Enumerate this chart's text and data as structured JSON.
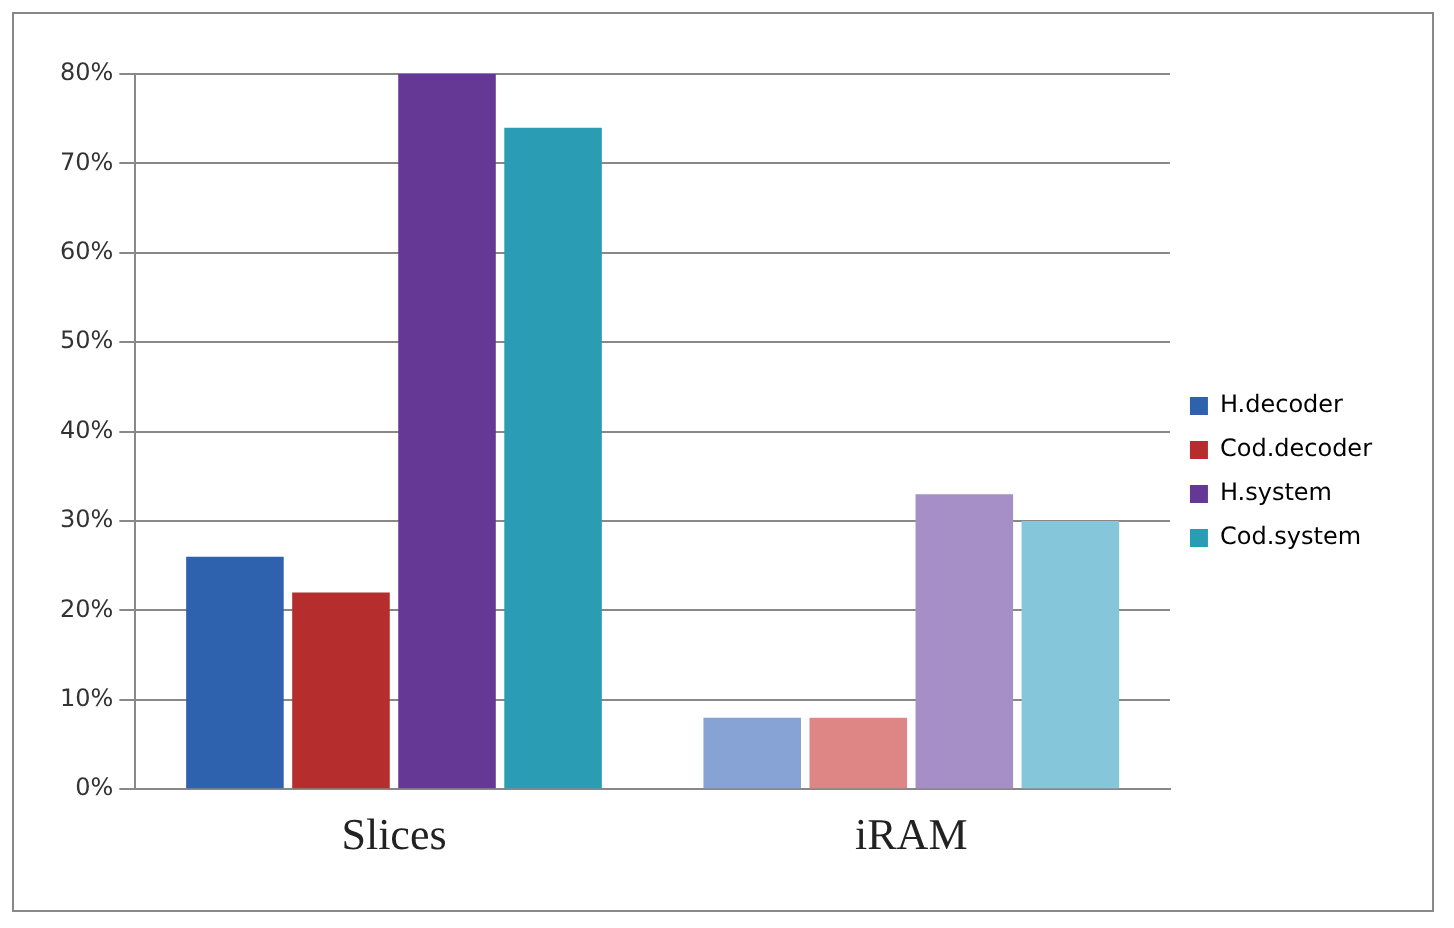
{
  "chart_data": {
    "type": "bar",
    "categories": [
      "Slices",
      "iRAM"
    ],
    "series": [
      {
        "name": "H.decoder",
        "color": "#2e62ae",
        "colors": [
          "#2e62ae",
          "#87a3d6"
        ],
        "values": [
          26,
          8
        ]
      },
      {
        "name": "Cod.decoder",
        "color": "#b52d2d",
        "colors": [
          "#b52d2d",
          "#de8686"
        ],
        "values": [
          22,
          8
        ]
      },
      {
        "name": "H.system",
        "color": "#663896",
        "colors": [
          "#663896",
          "#a68ec6"
        ],
        "values": [
          80,
          33
        ]
      },
      {
        "name": "Cod.system",
        "color": "#2a9db5",
        "colors": [
          "#2a9db5",
          "#86c6da"
        ],
        "values": [
          74,
          30
        ]
      }
    ],
    "ylim": [
      0,
      80
    ],
    "yticks": [
      {
        "value": 0,
        "label": "0%"
      },
      {
        "value": 10,
        "label": "10%"
      },
      {
        "value": 20,
        "label": "20%"
      },
      {
        "value": 30,
        "label": "30%"
      },
      {
        "value": 40,
        "label": "40%"
      },
      {
        "value": 50,
        "label": "50%"
      },
      {
        "value": 60,
        "label": "60%"
      },
      {
        "value": 70,
        "label": "70%"
      },
      {
        "value": 80,
        "label": "80%"
      }
    ],
    "grid": "y",
    "legend": "right"
  }
}
